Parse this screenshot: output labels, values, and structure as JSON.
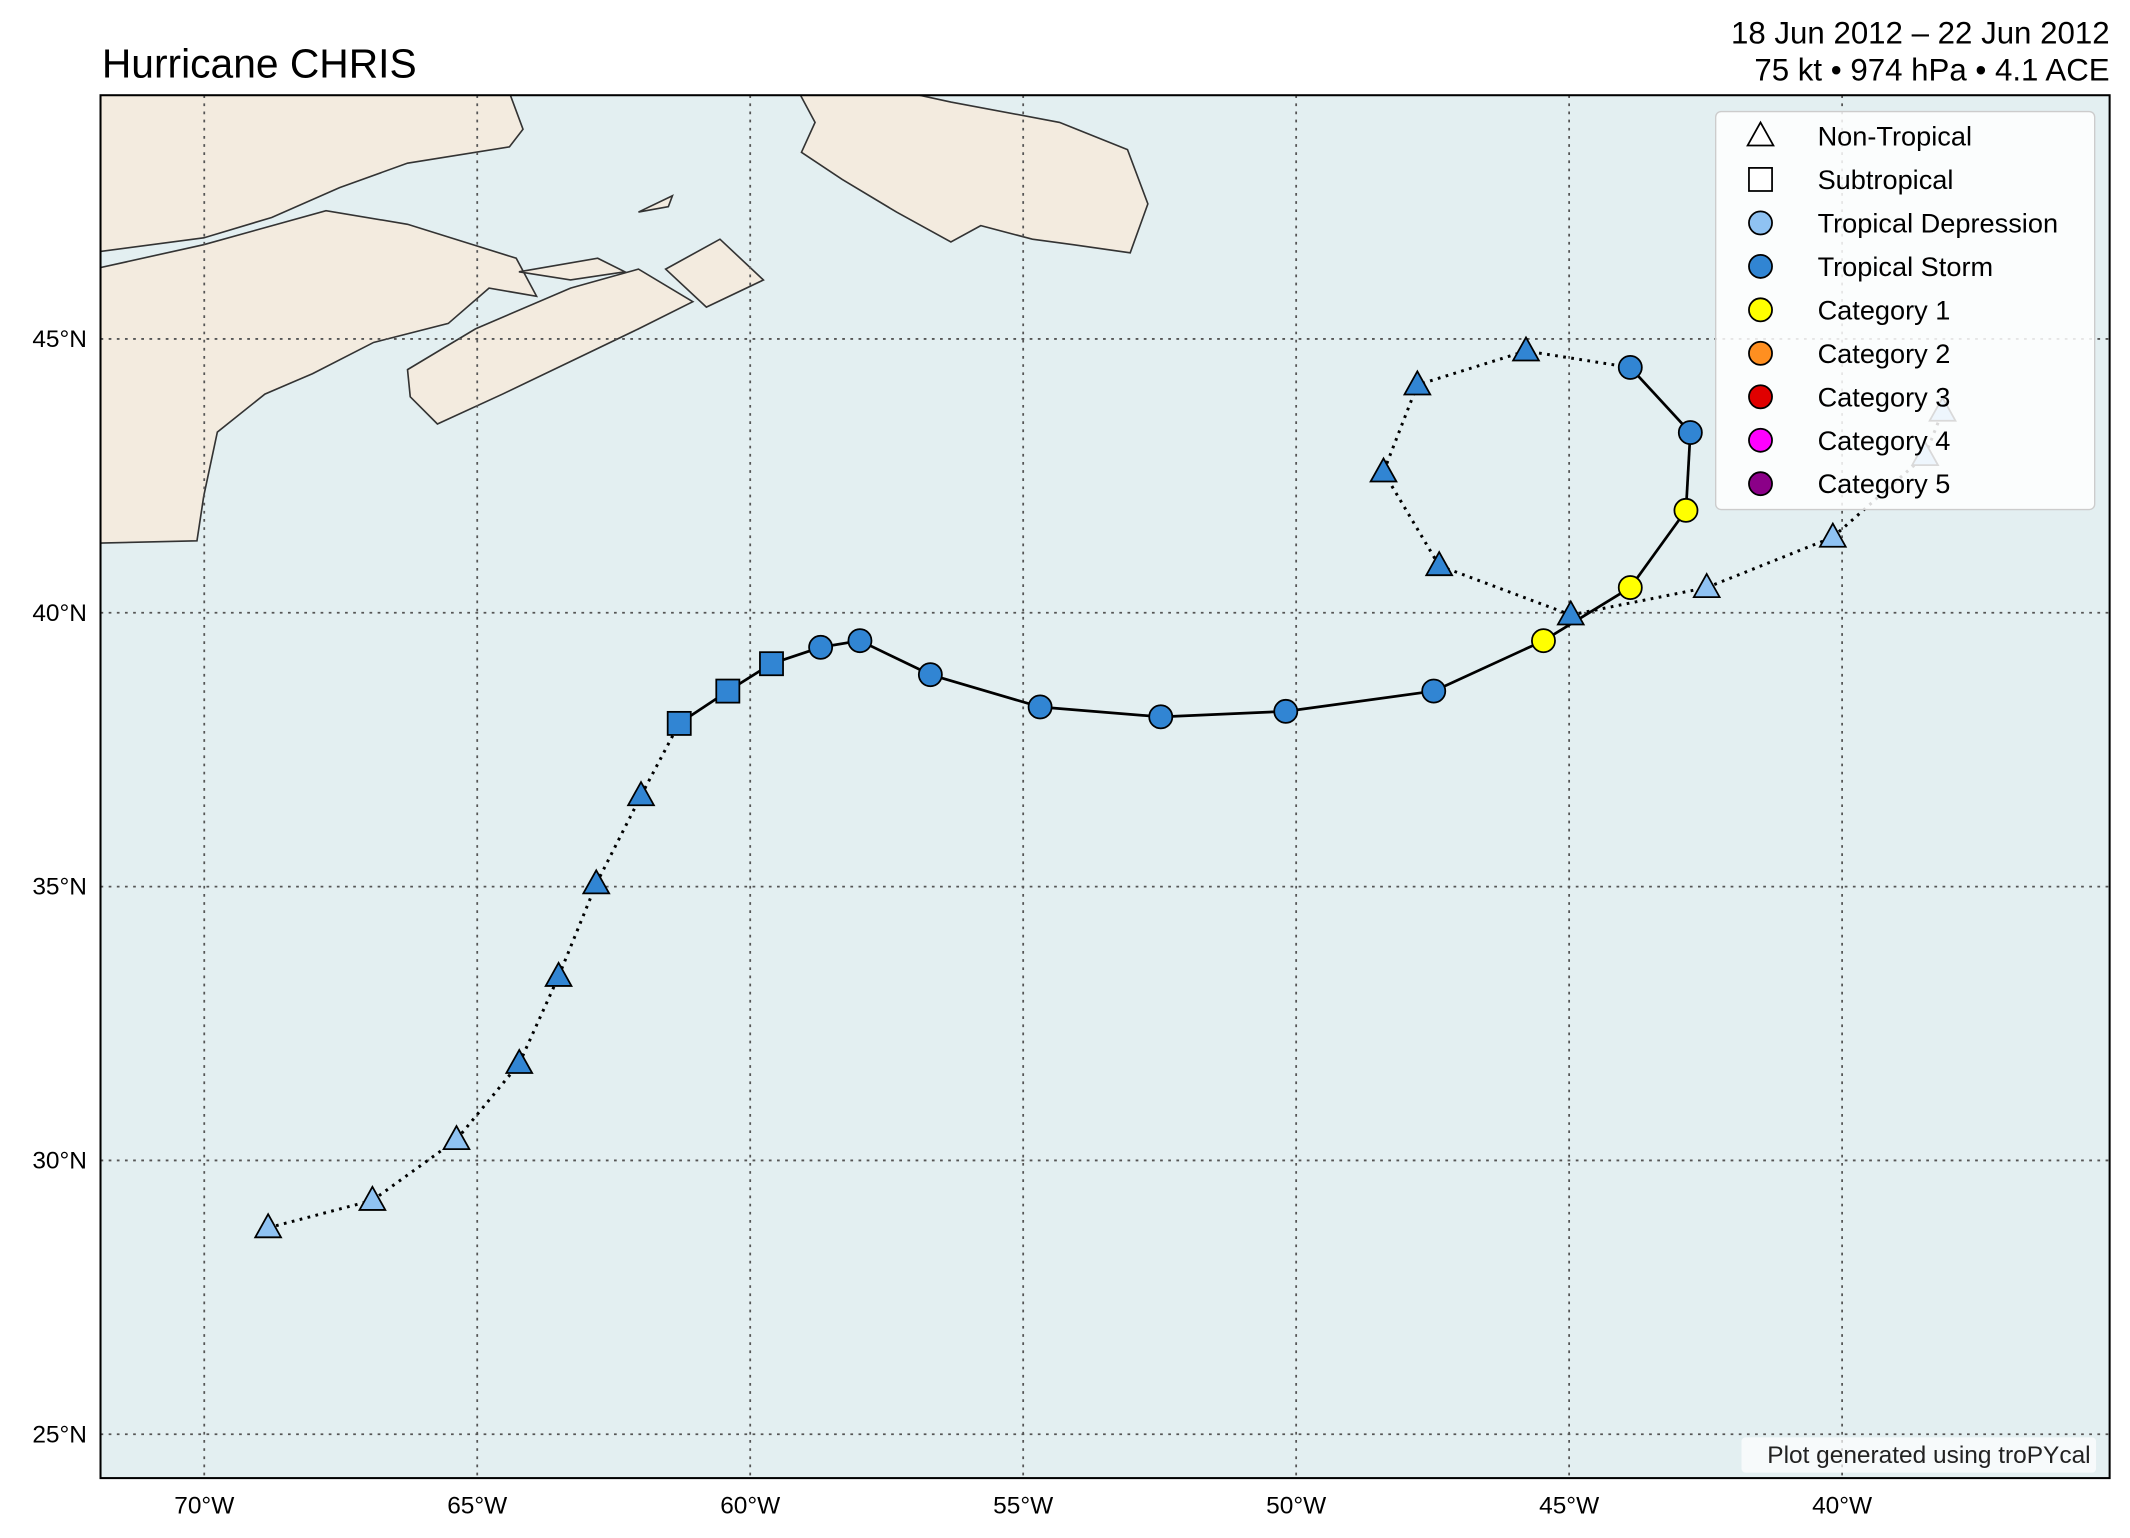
{
  "title": "Hurricane CHRIS",
  "subtitle_lines": [
    "18 Jun 2012 – 22 Jun 2012",
    "75 kt • 974 hPa • 4.1 ACE"
  ],
  "map": {
    "xlim": [
      -71.9,
      -35.1
    ],
    "ylim": [
      24.2,
      49.45
    ],
    "grid": true,
    "xticks": [
      {
        "value": -70,
        "label": "70°W"
      },
      {
        "value": -65,
        "label": "65°W"
      },
      {
        "value": -60,
        "label": "60°W"
      },
      {
        "value": -55,
        "label": "55°W"
      },
      {
        "value": -50,
        "label": "50°W"
      },
      {
        "value": -45,
        "label": "45°W"
      },
      {
        "value": -40,
        "label": "40°W"
      }
    ],
    "yticks": [
      {
        "value": 25,
        "label": "25°N"
      },
      {
        "value": 30,
        "label": "30°N"
      },
      {
        "value": 35,
        "label": "35°N"
      },
      {
        "value": 40,
        "label": "40°N"
      },
      {
        "value": 45,
        "label": "45°N"
      }
    ]
  },
  "legend": [
    {
      "label": "Non-Tropical",
      "marker": "triangle",
      "color": "none"
    },
    {
      "label": "Subtropical",
      "marker": "square",
      "color": "none"
    },
    {
      "label": "Tropical Depression",
      "marker": "circle",
      "color": "#8fc2f2"
    },
    {
      "label": "Tropical Storm",
      "marker": "circle",
      "color": "#3185d3"
    },
    {
      "label": "Category 1",
      "marker": "circle",
      "color": "#ffff00"
    },
    {
      "label": "Category 2",
      "marker": "circle",
      "color": "#ff8f20"
    },
    {
      "label": "Category 3",
      "marker": "circle",
      "color": "#e00000"
    },
    {
      "label": "Category 4",
      "marker": "circle",
      "color": "#ff00ff"
    },
    {
      "label": "Category 5",
      "marker": "circle",
      "color": "#8b0088"
    }
  ],
  "track": {
    "lon": [
      -68.83,
      -66.92,
      -65.38,
      -64.23,
      -63.51,
      -62.82,
      -62.0,
      -61.3,
      -60.41,
      -59.61,
      -58.71,
      -57.99,
      -56.7,
      -54.69,
      -52.48,
      -50.19,
      -47.48,
      -45.47,
      -43.88,
      -42.86,
      -42.78,
      -43.88,
      -45.79,
      -47.78,
      -48.4,
      -47.38,
      -44.97,
      -42.48,
      -40.17,
      -38.48,
      -38.16
    ],
    "lat": [
      28.77,
      29.27,
      30.38,
      31.77,
      33.36,
      35.05,
      36.66,
      37.98,
      38.57,
      39.07,
      39.37,
      39.49,
      38.87,
      38.28,
      38.1,
      38.2,
      38.57,
      39.49,
      40.46,
      41.87,
      43.29,
      44.48,
      44.78,
      44.16,
      42.57,
      40.86,
      39.96,
      40.46,
      41.38,
      42.87,
      43.68
    ],
    "stage": [
      "Non-Tropical",
      "Non-Tropical",
      "Non-Tropical",
      "Non-Tropical",
      "Non-Tropical",
      "Non-Tropical",
      "Non-Tropical",
      "Subtropical",
      "Subtropical",
      "Subtropical",
      "Tropical",
      "Tropical",
      "Tropical",
      "Tropical",
      "Tropical",
      "Tropical",
      "Tropical",
      "Tropical",
      "Tropical",
      "Tropical",
      "Tropical",
      "Tropical",
      "Non-Tropical",
      "Non-Tropical",
      "Non-Tropical",
      "Non-Tropical",
      "Non-Tropical",
      "Non-Tropical",
      "Non-Tropical",
      "Non-Tropical",
      "Non-Tropical"
    ],
    "intensity": [
      "Tropical Depression",
      "Tropical Depression",
      "Tropical Depression",
      "Tropical Storm",
      "Tropical Storm",
      "Tropical Storm",
      "Tropical Storm",
      "Tropical Storm",
      "Tropical Storm",
      "Tropical Storm",
      "Tropical Storm",
      "Tropical Storm",
      "Tropical Storm",
      "Tropical Storm",
      "Tropical Storm",
      "Tropical Storm",
      "Tropical Storm",
      "Category 1",
      "Category 1",
      "Category 1",
      "Tropical Storm",
      "Tropical Storm",
      "Tropical Storm",
      "Tropical Storm",
      "Tropical Storm",
      "Tropical Storm",
      "Tropical Storm",
      "Tropical Depression",
      "Tropical Depression",
      "Tropical Depression",
      "Tropical Depression"
    ]
  },
  "credit": "Plot generated using troPYcal"
}
